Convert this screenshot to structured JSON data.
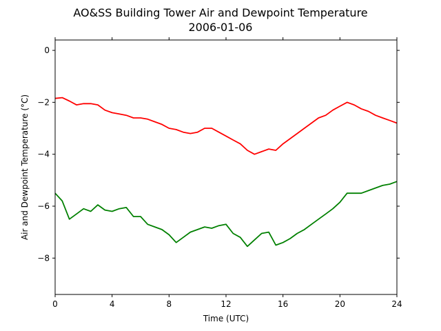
{
  "chart_data": {
    "type": "line",
    "title": "AO&SS Building Tower Air and Dewpoint Temperature",
    "subtitle": "2006-01-06",
    "xlabel": "Time (UTC)",
    "ylabel": "Air and Dewpoint Temperature (°C)",
    "xlim": [
      0,
      24
    ],
    "ylim": [
      -9.4,
      0.4
    ],
    "xticks": [
      0,
      4,
      8,
      12,
      16,
      20,
      24
    ],
    "yticks": [
      0,
      -2,
      -4,
      -6,
      -8
    ],
    "grid": false,
    "legend": "none",
    "series": [
      {
        "color": "#ff0000",
        "x": [
          0,
          0.5,
          1,
          1.5,
          2,
          2.5,
          3,
          3.5,
          4,
          4.5,
          5,
          5.5,
          6,
          6.5,
          7,
          7.5,
          8,
          8.5,
          9,
          9.5,
          10,
          10.5,
          11,
          11.5,
          12,
          12.5,
          13,
          13.5,
          14,
          14.5,
          15,
          15.5,
          16,
          16.5,
          17,
          17.5,
          18,
          18.5,
          19,
          19.5,
          20,
          20.5,
          21,
          21.5,
          22,
          22.5,
          23,
          23.5,
          24
        ],
        "y": [
          -1.85,
          -1.82,
          -1.95,
          -2.1,
          -2.05,
          -2.05,
          -2.1,
          -2.3,
          -2.4,
          -2.45,
          -2.5,
          -2.6,
          -2.6,
          -2.65,
          -2.75,
          -2.85,
          -3.0,
          -3.05,
          -3.15,
          -3.2,
          -3.15,
          -3.0,
          -3.0,
          -3.15,
          -3.3,
          -3.45,
          -3.6,
          -3.85,
          -4.0,
          -3.9,
          -3.8,
          -3.85,
          -3.6,
          -3.4,
          -3.2,
          -3.0,
          -2.8,
          -2.6,
          -2.5,
          -2.3,
          -2.15,
          -2.0,
          -2.1,
          -2.25,
          -2.35,
          -2.5,
          -2.6,
          -2.7,
          -2.8
        ]
      },
      {
        "color": "#008000",
        "x": [
          0,
          0.5,
          1,
          1.5,
          2,
          2.5,
          3,
          3.5,
          4,
          4.5,
          5,
          5.5,
          6,
          6.5,
          7,
          7.5,
          8,
          8.5,
          9,
          9.5,
          10,
          10.5,
          11,
          11.5,
          12,
          12.5,
          13,
          13.5,
          14,
          14.5,
          15,
          15.5,
          16,
          16.5,
          17,
          17.5,
          18,
          18.5,
          19,
          19.5,
          20,
          20.5,
          21,
          21.5,
          22,
          22.5,
          23,
          23.5,
          24
        ],
        "y": [
          -5.5,
          -5.8,
          -6.5,
          -6.3,
          -6.1,
          -6.2,
          -5.95,
          -6.15,
          -6.2,
          -6.1,
          -6.05,
          -6.4,
          -6.4,
          -6.7,
          -6.8,
          -6.9,
          -7.1,
          -7.4,
          -7.2,
          -7.0,
          -6.9,
          -6.8,
          -6.85,
          -6.75,
          -6.7,
          -7.05,
          -7.2,
          -7.55,
          -7.3,
          -7.05,
          -7.0,
          -7.5,
          -7.4,
          -7.25,
          -7.05,
          -6.9,
          -6.7,
          -6.5,
          -6.3,
          -6.1,
          -5.85,
          -5.5,
          -5.5,
          -5.5,
          -5.4,
          -5.3,
          -5.2,
          -5.15,
          -5.05
        ]
      }
    ]
  }
}
